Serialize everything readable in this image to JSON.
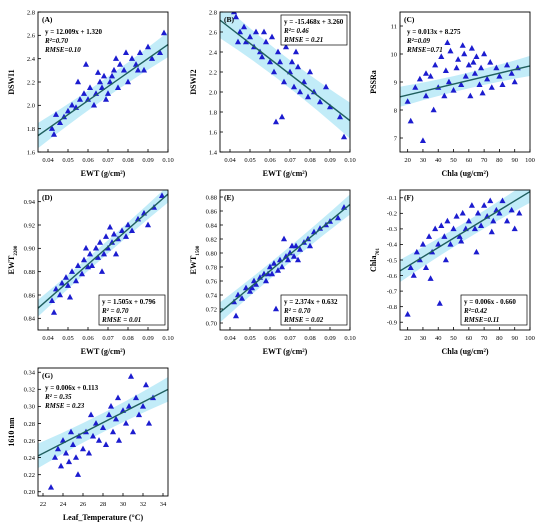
{
  "chart_data": [
    {
      "type": "scatter",
      "panel": "(A)",
      "xlabel": "EWT (g/cm²)",
      "ylabel": "DSWI1",
      "xlim": [
        0.035,
        0.1
      ],
      "ylim": [
        1.6,
        2.8
      ],
      "xticks": [
        0.04,
        0.05,
        0.06,
        0.07,
        0.08,
        0.09,
        0.1
      ],
      "xticklabels": [
        "0.04",
        "0.05",
        "0.06",
        "0.07",
        "0.08",
        "0.09",
        "0.10"
      ],
      "yticks": [
        1.6,
        1.8,
        2.0,
        2.2,
        2.4,
        2.6,
        2.8
      ],
      "yticklabels": [
        "1.6",
        "1.8",
        "2.0",
        "2.2",
        "2.4",
        "2.6",
        "2.8"
      ],
      "fit": {
        "slope": 12.009,
        "intercept": 1.32,
        "band": 0.06
      },
      "stats": [
        "y = 12.009x + 1.320",
        "R²=0.70",
        "RMSE=0.10"
      ],
      "stats_loc": "top-left",
      "x": [
        0.042,
        0.044,
        0.046,
        0.048,
        0.05,
        0.052,
        0.054,
        0.056,
        0.058,
        0.06,
        0.061,
        0.063,
        0.064,
        0.066,
        0.067,
        0.068,
        0.07,
        0.071,
        0.072,
        0.073,
        0.075,
        0.076,
        0.078,
        0.08,
        0.082,
        0.084,
        0.086,
        0.088,
        0.09,
        0.092,
        0.096,
        0.098,
        0.043,
        0.055,
        0.059,
        0.065,
        0.069,
        0.074,
        0.079,
        0.085
      ],
      "y": [
        1.8,
        1.92,
        1.85,
        1.9,
        1.95,
        2.0,
        1.98,
        2.05,
        2.1,
        2.05,
        2.15,
        2.0,
        2.1,
        2.2,
        2.15,
        2.25,
        2.1,
        2.2,
        2.25,
        2.3,
        2.15,
        2.35,
        2.3,
        2.2,
        2.4,
        2.35,
        2.45,
        2.3,
        2.5,
        2.4,
        2.45,
        2.62,
        1.75,
        2.2,
        2.35,
        2.28,
        2.05,
        2.4,
        2.45,
        2.3
      ]
    },
    {
      "type": "scatter",
      "panel": "(B)",
      "xlabel": "EWT (g/cm²)",
      "ylabel": "DSWI2",
      "xlim": [
        0.035,
        0.1
      ],
      "ylim": [
        1.4,
        2.8
      ],
      "xticks": [
        0.04,
        0.05,
        0.06,
        0.07,
        0.08,
        0.09,
        0.1
      ],
      "xticklabels": [
        "0.04",
        "0.05",
        "0.06",
        "0.07",
        "0.08",
        "0.09",
        "0.10"
      ],
      "yticks": [
        1.4,
        1.6,
        1.8,
        2.0,
        2.2,
        2.4,
        2.6,
        2.8
      ],
      "yticklabels": [
        "1.4",
        "1.6",
        "1.8",
        "2.0",
        "2.2",
        "2.4",
        "2.6",
        "2.8"
      ],
      "fit": {
        "slope": -15.468,
        "intercept": 3.26,
        "band": 0.1
      },
      "stats": [
        "y = -15.468x + 3.260",
        "R²= 0.46",
        "RMSE = 0.21"
      ],
      "stats_loc": "top-right",
      "x": [
        0.042,
        0.043,
        0.045,
        0.047,
        0.048,
        0.05,
        0.052,
        0.053,
        0.055,
        0.056,
        0.058,
        0.06,
        0.061,
        0.062,
        0.064,
        0.065,
        0.067,
        0.068,
        0.07,
        0.071,
        0.072,
        0.074,
        0.075,
        0.077,
        0.079,
        0.08,
        0.082,
        0.085,
        0.088,
        0.09,
        0.095,
        0.097,
        0.044,
        0.057,
        0.063,
        0.066,
        0.069,
        0.073
      ],
      "y": [
        2.8,
        2.75,
        2.6,
        2.65,
        2.5,
        2.55,
        2.45,
        2.6,
        2.4,
        2.35,
        2.5,
        2.3,
        2.55,
        2.2,
        2.4,
        2.3,
        2.1,
        2.45,
        2.2,
        2.3,
        2.05,
        2.25,
        2.0,
        2.1,
        1.95,
        2.2,
        2.0,
        1.9,
        2.05,
        1.85,
        1.75,
        1.55,
        2.5,
        2.6,
        1.7,
        1.75,
        2.5,
        2.4
      ]
    },
    {
      "type": "scatter",
      "panel": "(C)",
      "xlabel": "Chla (ug/cm²)",
      "ylabel": "PSSRa",
      "xlim": [
        15,
        100
      ],
      "ylim": [
        6.5,
        11.5
      ],
      "xticks": [
        20,
        30,
        40,
        50,
        60,
        70,
        80,
        90,
        100
      ],
      "xticklabels": [
        "20",
        "30",
        "40",
        "50",
        "60",
        "70",
        "80",
        "90",
        "100"
      ],
      "yticks": [
        7,
        8,
        9,
        10,
        11
      ],
      "yticklabels": [
        "7",
        "8",
        "9",
        "10",
        "11"
      ],
      "fit": {
        "slope": 0.013,
        "intercept": 8.275,
        "band": 0.2
      },
      "stats": [
        "y = 0.013x + 8.275",
        "R²=0.09",
        "RMSE=0.71"
      ],
      "stats_loc": "top-left",
      "x": [
        20,
        22,
        25,
        28,
        30,
        32,
        35,
        37,
        38,
        40,
        42,
        44,
        45,
        47,
        48,
        50,
        52,
        53,
        55,
        56,
        58,
        60,
        61,
        62,
        64,
        65,
        67,
        68,
        70,
        72,
        74,
        75,
        78,
        80,
        82,
        85,
        88,
        90,
        92,
        32,
        46,
        57,
        63,
        69
      ],
      "y": [
        8.3,
        7.6,
        8.8,
        9.1,
        6.9,
        8.5,
        9.2,
        8.0,
        9.6,
        8.8,
        9.9,
        8.5,
        9.4,
        9.0,
        10.1,
        8.7,
        9.5,
        9.8,
        8.9,
        10.3,
        9.2,
        9.6,
        8.5,
        10.2,
        9.3,
        9.9,
        8.9,
        9.5,
        10.0,
        9.1,
        9.7,
        8.8,
        9.5,
        9.2,
        8.9,
        9.6,
        9.3,
        9.0,
        9.5,
        9.3,
        10.4,
        10.0,
        9.7,
        8.6
      ]
    },
    {
      "type": "scatter",
      "panel": "(D)",
      "xlabel": "EWT (g/cm²)",
      "ylabel": "EWT",
      "ylabel_sub": "2200",
      "xlim": [
        0.035,
        0.1
      ],
      "ylim": [
        0.83,
        0.95
      ],
      "xticks": [
        0.04,
        0.05,
        0.06,
        0.07,
        0.08,
        0.09,
        0.1
      ],
      "xticklabels": [
        "0.04",
        "0.05",
        "0.06",
        "0.07",
        "0.08",
        "0.09",
        "0.10"
      ],
      "yticks": [
        0.84,
        0.86,
        0.88,
        0.9,
        0.92,
        0.94
      ],
      "yticklabels": [
        "0.84",
        "0.86",
        "0.88",
        "0.90",
        "0.92",
        "0.94"
      ],
      "fit": {
        "slope": 1.505,
        "intercept": 0.796,
        "band": 0.004
      },
      "stats": [
        "y = 1.505x + 0.796",
        "R² = 0.70",
        "RMSE = 0.01"
      ],
      "stats_loc": "bottom-right",
      "x": [
        0.042,
        0.044,
        0.046,
        0.047,
        0.049,
        0.05,
        0.052,
        0.054,
        0.055,
        0.057,
        0.058,
        0.06,
        0.061,
        0.062,
        0.064,
        0.065,
        0.066,
        0.068,
        0.069,
        0.07,
        0.072,
        0.073,
        0.075,
        0.077,
        0.079,
        0.08,
        0.082,
        0.085,
        0.088,
        0.09,
        0.093,
        0.097,
        0.043,
        0.051,
        0.059,
        0.067,
        0.071,
        0.074
      ],
      "y": [
        0.855,
        0.865,
        0.86,
        0.87,
        0.875,
        0.868,
        0.88,
        0.872,
        0.885,
        0.878,
        0.89,
        0.884,
        0.895,
        0.885,
        0.9,
        0.892,
        0.905,
        0.895,
        0.91,
        0.9,
        0.905,
        0.912,
        0.908,
        0.915,
        0.91,
        0.92,
        0.915,
        0.925,
        0.93,
        0.92,
        0.935,
        0.945,
        0.845,
        0.858,
        0.9,
        0.88,
        0.918,
        0.895
      ]
    },
    {
      "type": "scatter",
      "panel": "(E)",
      "xlabel": "EWT (g/cm²)",
      "ylabel": "EWT",
      "ylabel_sub": "1500",
      "xlim": [
        0.035,
        0.1
      ],
      "ylim": [
        0.69,
        0.89
      ],
      "xticks": [
        0.04,
        0.05,
        0.06,
        0.07,
        0.08,
        0.09,
        0.1
      ],
      "xticklabels": [
        "0.04",
        "0.05",
        "0.06",
        "0.07",
        "0.08",
        "0.09",
        "0.10"
      ],
      "yticks": [
        0.7,
        0.72,
        0.74,
        0.76,
        0.78,
        0.8,
        0.82,
        0.84,
        0.86,
        0.88
      ],
      "yticklabels": [
        "0.70",
        "0.72",
        "0.74",
        "0.76",
        "0.78",
        "0.80",
        "0.82",
        "0.84",
        "0.86",
        "0.88"
      ],
      "fit": {
        "slope": 2.374,
        "intercept": 0.632,
        "band": 0.008
      },
      "stats": [
        "y = 2.374x + 0.632",
        "R² = 0.70",
        "RMSE = 0.02"
      ],
      "stats_loc": "bottom-right",
      "x": [
        0.042,
        0.044,
        0.046,
        0.048,
        0.05,
        0.052,
        0.053,
        0.055,
        0.057,
        0.058,
        0.06,
        0.061,
        0.062,
        0.064,
        0.065,
        0.066,
        0.068,
        0.069,
        0.07,
        0.072,
        0.073,
        0.075,
        0.077,
        0.079,
        0.08,
        0.082,
        0.085,
        0.088,
        0.09,
        0.094,
        0.097,
        0.043,
        0.051,
        0.059,
        0.063,
        0.067,
        0.071,
        0.074
      ],
      "y": [
        0.73,
        0.74,
        0.735,
        0.75,
        0.745,
        0.76,
        0.755,
        0.765,
        0.77,
        0.76,
        0.78,
        0.77,
        0.785,
        0.775,
        0.79,
        0.78,
        0.795,
        0.79,
        0.8,
        0.795,
        0.81,
        0.805,
        0.815,
        0.82,
        0.81,
        0.83,
        0.835,
        0.84,
        0.845,
        0.85,
        0.865,
        0.71,
        0.75,
        0.77,
        0.72,
        0.82,
        0.81,
        0.79
      ]
    },
    {
      "type": "scatter",
      "panel": "(F)",
      "xlabel": "Chla (ug/cm²)",
      "ylabel": "Chla",
      "ylabel_sub": "701",
      "xlim": [
        15,
        100
      ],
      "ylim": [
        -0.95,
        -0.05
      ],
      "xticks": [
        20,
        30,
        40,
        50,
        60,
        70,
        80,
        90,
        100
      ],
      "xticklabels": [
        "20",
        "30",
        "40",
        "50",
        "60",
        "70",
        "80",
        "90",
        "100"
      ],
      "yticks": [
        -0.1,
        -0.2,
        -0.3,
        -0.4,
        -0.5,
        -0.6,
        -0.7,
        -0.8,
        -0.9
      ],
      "yticklabels": [
        "-0.1",
        "-0.2",
        "-0.3",
        "-0.4",
        "-0.5",
        "-0.6",
        "-0.7",
        "-0.8",
        "-0.9"
      ],
      "fit": {
        "slope": 0.006,
        "intercept": -0.66,
        "band": 0.04
      },
      "stats": [
        "y = 0.006x - 0.660",
        "R²=0.42",
        "RMSE=0.11"
      ],
      "stats_loc": "bottom-right",
      "x": [
        20,
        22,
        24,
        26,
        28,
        30,
        32,
        34,
        36,
        38,
        40,
        42,
        44,
        46,
        48,
        50,
        52,
        54,
        56,
        58,
        60,
        62,
        64,
        66,
        68,
        70,
        72,
        74,
        76,
        78,
        80,
        82,
        85,
        88,
        90,
        93,
        35,
        45,
        55,
        65,
        75,
        41
      ],
      "y": [
        -0.85,
        -0.55,
        -0.6,
        -0.45,
        -0.5,
        -0.4,
        -0.55,
        -0.35,
        -0.45,
        -0.3,
        -0.4,
        -0.28,
        -0.35,
        -0.25,
        -0.4,
        -0.3,
        -0.22,
        -0.35,
        -0.2,
        -0.3,
        -0.25,
        -0.15,
        -0.3,
        -0.2,
        -0.28,
        -0.15,
        -0.22,
        -0.12,
        -0.25,
        -0.18,
        -0.2,
        -0.12,
        -0.25,
        -0.18,
        -0.3,
        -0.2,
        -0.62,
        -0.5,
        -0.38,
        -0.45,
        -0.32,
        -0.78
      ]
    },
    {
      "type": "scatter",
      "panel": "(G)",
      "xlabel": "Leaf_Temperature (°C)",
      "ylabel": "1610 nm",
      "xlim": [
        21.5,
        34.5
      ],
      "ylim": [
        0.195,
        0.345
      ],
      "xticks": [
        22,
        24,
        26,
        28,
        30,
        32,
        34
      ],
      "xticklabels": [
        "22",
        "24",
        "26",
        "28",
        "30",
        "32",
        "34"
      ],
      "yticks": [
        0.2,
        0.22,
        0.24,
        0.26,
        0.28,
        0.3,
        0.32,
        0.34
      ],
      "yticklabels": [
        "0.20",
        "0.22",
        "0.24",
        "0.26",
        "0.28",
        "0.30",
        "0.32",
        "0.34"
      ],
      "fit": {
        "slope": 0.006,
        "intercept": 0.113,
        "band": 0.008
      },
      "stats": [
        "y = 0.006x + 0.113",
        "R² = 0.35",
        "RMSE = 0.23"
      ],
      "stats_loc": "top-left",
      "x": [
        22.8,
        23.2,
        23.5,
        23.8,
        24.0,
        24.3,
        24.6,
        25.0,
        25.3,
        25.6,
        26.0,
        26.3,
        26.6,
        27.0,
        27.3,
        27.6,
        28.0,
        28.3,
        28.6,
        29.0,
        29.3,
        29.6,
        30.0,
        30.3,
        30.6,
        31.0,
        31.3,
        31.6,
        32.0,
        32.3,
        32.6,
        33.0,
        24.8,
        26.8,
        28.8,
        30.8,
        25.5,
        29.5
      ],
      "y": [
        0.205,
        0.24,
        0.25,
        0.23,
        0.26,
        0.245,
        0.235,
        0.255,
        0.24,
        0.265,
        0.25,
        0.27,
        0.245,
        0.265,
        0.28,
        0.26,
        0.275,
        0.255,
        0.29,
        0.27,
        0.285,
        0.26,
        0.295,
        0.28,
        0.3,
        0.27,
        0.31,
        0.29,
        0.3,
        0.325,
        0.28,
        0.31,
        0.27,
        0.29,
        0.3,
        0.335,
        0.22,
        0.31
      ]
    }
  ]
}
